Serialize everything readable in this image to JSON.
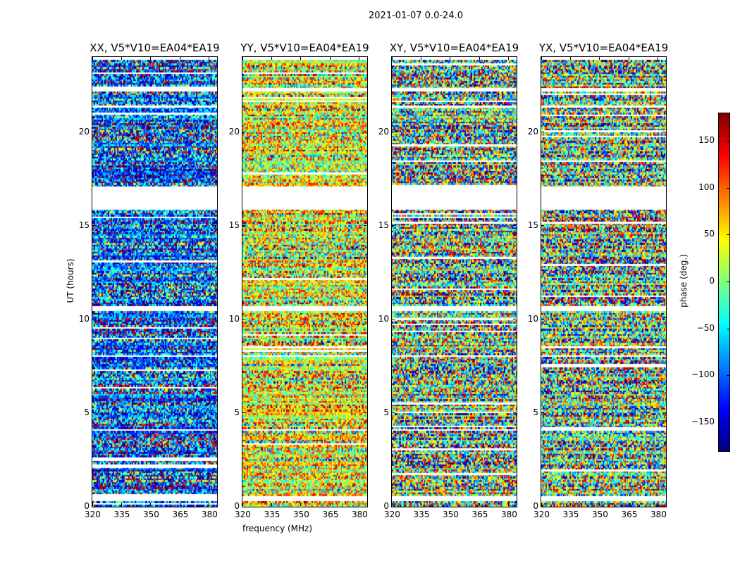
{
  "chart_data": {
    "type": "heatmap",
    "title": "2021-01-07 0.0-24.0",
    "xlabel": "frequency (MHz)",
    "ylabel": "UT (hours)",
    "xlim": [
      320,
      384
    ],
    "ylim": [
      0,
      24
    ],
    "xticks": [
      320,
      335,
      350,
      365,
      380
    ],
    "yticks": [
      0,
      5,
      10,
      15,
      20
    ],
    "panels": [
      {
        "title": "XX, V5*V10=EA04*EA19",
        "bias": -100,
        "spread": 120
      },
      {
        "title": "YY, V5*V10=EA04*EA19",
        "bias": 40,
        "spread": 110
      },
      {
        "title": "XY, V5*V10=EA04*EA19",
        "bias": 0,
        "spread": 180
      },
      {
        "title": "YX, V5*V10=EA04*EA19",
        "bias": 0,
        "spread": 180
      }
    ],
    "flagged_hours": [
      [
        23.85,
        24
      ],
      [
        22.15,
        22.35
      ],
      [
        19.4,
        19.45
      ],
      [
        17.05,
        15.85
      ],
      [
        10.4,
        10.65
      ],
      [
        8.0,
        8.1
      ],
      [
        5.5,
        5.55
      ],
      [
        4.1,
        4.0
      ],
      [
        0.25,
        0.6
      ]
    ],
    "colorbar": {
      "label": "phase (deg.)",
      "range": [
        -180,
        180
      ],
      "ticks": [
        -150,
        -100,
        -50,
        0,
        50,
        100,
        150
      ],
      "colormap": "jet"
    }
  }
}
